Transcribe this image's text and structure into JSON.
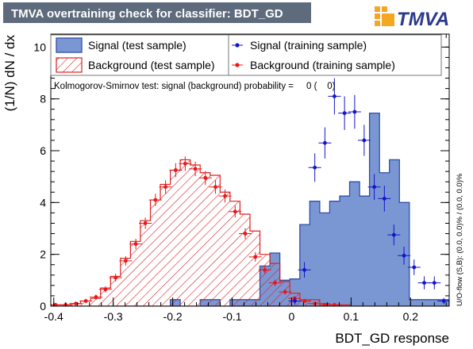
{
  "title": "TMVA overtraining check for classifier: BDT_GD",
  "logo_text": "TMVA",
  "colors": {
    "title_bg": "#5d6b7d",
    "signal_fill": "#7b97d3",
    "signal_line": "#2f4fa8",
    "signal_points": "#1515c8",
    "background_line": "#dd2222",
    "background_points": "#e81818",
    "logo_orange": "#f5a623",
    "logo_blue": "#2b3a8c"
  },
  "legend": {
    "signal_test": "Signal (test sample)",
    "background_test": "Background (test sample)",
    "signal_train": "Signal (training sample)",
    "background_train": "Background (training sample)"
  },
  "ks_text": "Kolmogorov-Smirnov test: signal (background) probability =     0 (    0)",
  "overflow_text": "U/O-flow (S,B): (0.0, 0.0)% / (0.0, 0.0)%",
  "chart_data": {
    "type": "histogram",
    "xlabel": "BDT_GD response",
    "ylabel": "(1/N) dN / dx",
    "xlim": [
      -0.405,
      0.265
    ],
    "ylim": [
      0,
      10.5
    ],
    "xticks": [
      -0.4,
      -0.3,
      -0.2,
      -0.1,
      0,
      0.1,
      0.2
    ],
    "xtick_labels": [
      "-0.4",
      "-0.3",
      "-0.2",
      "-0.1",
      "0",
      "0.1",
      "0.2"
    ],
    "yticks": [
      0,
      2,
      4,
      6,
      8,
      10
    ],
    "ytick_labels": [
      "0",
      "2",
      "4",
      "6",
      "8",
      "10"
    ],
    "bin_edges": [
      -0.405,
      -0.3883,
      -0.3715,
      -0.3548,
      -0.338,
      -0.3213,
      -0.3045,
      -0.2878,
      -0.271,
      -0.2543,
      -0.2375,
      -0.2208,
      -0.204,
      -0.1873,
      -0.1705,
      -0.1538,
      -0.137,
      -0.1203,
      -0.1035,
      -0.0868,
      -0.07,
      -0.0533,
      -0.0365,
      -0.0198,
      -0.003,
      0.0138,
      0.0305,
      0.0473,
      0.064,
      0.0808,
      0.0975,
      0.1143,
      0.131,
      0.1478,
      0.1645,
      0.1813,
      0.198,
      0.2148,
      0.2315,
      0.2483,
      0.265
    ],
    "series": [
      {
        "name": "Signal (test sample)",
        "style": "filled-histogram",
        "values": [
          0,
          0,
          0,
          0,
          0,
          0,
          0,
          0,
          0,
          0,
          0,
          0,
          0.25,
          0,
          0,
          0.25,
          0.25,
          0,
          0.25,
          0.25,
          0.25,
          1.55,
          2.05,
          1.0,
          1.05,
          3.15,
          4.05,
          3.6,
          4.05,
          4.25,
          4.8,
          4.25,
          7.45,
          5.15,
          5.65,
          4.0,
          0.25,
          0.25,
          0.25,
          0.25
        ]
      },
      {
        "name": "Background (test sample)",
        "style": "hatched-histogram",
        "values": [
          0.05,
          0.05,
          0.1,
          0.2,
          0.3,
          0.7,
          1.15,
          1.85,
          2.5,
          3.3,
          4.1,
          4.7,
          5.25,
          5.65,
          5.45,
          5.15,
          5.05,
          4.4,
          4.05,
          3.55,
          2.9,
          2.0,
          1.65,
          0.95,
          0.5,
          0.25,
          0.25,
          0.1,
          0.05,
          0.05,
          0,
          0,
          0,
          0,
          0,
          0,
          0,
          0,
          0,
          0
        ]
      },
      {
        "name": "Signal (training sample)",
        "style": "points",
        "points": [
          {
            "x": 0.0055,
            "y": 0.2,
            "err": 0.15
          },
          {
            "x": 0.0215,
            "y": 1.4,
            "err": 0.3
          },
          {
            "x": 0.039,
            "y": 5.35,
            "err": 0.55
          },
          {
            "x": 0.056,
            "y": 6.3,
            "err": 0.6
          },
          {
            "x": 0.072,
            "y": 8.1,
            "err": 0.7
          },
          {
            "x": 0.089,
            "y": 7.45,
            "err": 0.65
          },
          {
            "x": 0.106,
            "y": 7.5,
            "err": 0.65
          },
          {
            "x": 0.122,
            "y": 6.4,
            "err": 0.6
          },
          {
            "x": 0.139,
            "y": 4.6,
            "err": 0.5
          },
          {
            "x": 0.156,
            "y": 4.15,
            "err": 0.5
          },
          {
            "x": 0.172,
            "y": 2.75,
            "err": 0.4
          },
          {
            "x": 0.189,
            "y": 1.95,
            "err": 0.35
          },
          {
            "x": 0.206,
            "y": 1.5,
            "err": 0.3
          },
          {
            "x": 0.223,
            "y": 0.9,
            "err": 0.25
          },
          {
            "x": 0.24,
            "y": 0.9,
            "err": 0.25
          },
          {
            "x": 0.256,
            "y": 0.2,
            "err": 0.12
          }
        ]
      },
      {
        "name": "Background (training sample)",
        "style": "points",
        "points": [
          {
            "x": -0.397,
            "y": 0.05,
            "err": 0.05
          },
          {
            "x": -0.38,
            "y": 0.05,
            "err": 0.05
          },
          {
            "x": -0.363,
            "y": 0.1,
            "err": 0.07
          },
          {
            "x": -0.346,
            "y": 0.2,
            "err": 0.08
          },
          {
            "x": -0.329,
            "y": 0.35,
            "err": 0.1
          },
          {
            "x": -0.313,
            "y": 0.65,
            "err": 0.12
          },
          {
            "x": -0.296,
            "y": 1.1,
            "err": 0.15
          },
          {
            "x": -0.279,
            "y": 1.75,
            "err": 0.18
          },
          {
            "x": -0.262,
            "y": 2.4,
            "err": 0.2
          },
          {
            "x": -0.246,
            "y": 3.2,
            "err": 0.22
          },
          {
            "x": -0.229,
            "y": 4.1,
            "err": 0.24
          },
          {
            "x": -0.212,
            "y": 4.6,
            "err": 0.26
          },
          {
            "x": -0.195,
            "y": 5.25,
            "err": 0.27
          },
          {
            "x": -0.179,
            "y": 5.5,
            "err": 0.28
          },
          {
            "x": -0.162,
            "y": 5.3,
            "err": 0.28
          },
          {
            "x": -0.145,
            "y": 4.95,
            "err": 0.27
          },
          {
            "x": -0.128,
            "y": 4.6,
            "err": 0.26
          },
          {
            "x": -0.112,
            "y": 4.25,
            "err": 0.25
          },
          {
            "x": -0.095,
            "y": 3.65,
            "err": 0.23
          },
          {
            "x": -0.078,
            "y": 2.8,
            "err": 0.21
          },
          {
            "x": -0.061,
            "y": 1.9,
            "err": 0.18
          },
          {
            "x": -0.045,
            "y": 1.4,
            "err": 0.16
          },
          {
            "x": -0.028,
            "y": 0.9,
            "err": 0.13
          },
          {
            "x": -0.011,
            "y": 0.55,
            "err": 0.1
          },
          {
            "x": 0.005,
            "y": 0.3,
            "err": 0.08
          },
          {
            "x": 0.022,
            "y": 0.2,
            "err": 0.07
          },
          {
            "x": 0.039,
            "y": 0.1,
            "err": 0.05
          },
          {
            "x": 0.056,
            "y": 0.05,
            "err": 0.04
          },
          {
            "x": 0.072,
            "y": 0.05,
            "err": 0.03
          }
        ]
      }
    ],
    "legend_placement": "top",
    "grid": false
  }
}
